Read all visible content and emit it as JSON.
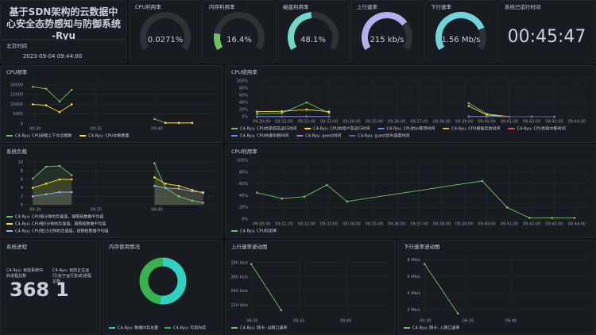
{
  "header": {
    "title": "基于SDN架构的云数据中心安全态势感知与防御系统-Ryu",
    "time_label": "北京时间",
    "time": "2023-09-04 09:44:00",
    "uptime_label": "系统已运行时间",
    "uptime": "00:45:47"
  },
  "gauges": [
    {
      "title": "CPU利用率",
      "value": 0.0271,
      "value_label": "0.0271%",
      "min": 0,
      "max": 100,
      "color": "#73bf69"
    },
    {
      "title": "内存利用率",
      "value": 16.4,
      "value_label": "16.4%",
      "min": 0,
      "max": 100,
      "color": "#73bf69"
    },
    {
      "title": "磁盘利用率",
      "value": 48.1,
      "value_label": "48.1%",
      "min": 0,
      "max": 100,
      "color": "#6fd8cf"
    },
    {
      "title": "上行速率",
      "value": 215,
      "value_label": "215 kb/s",
      "min": 0,
      "max": 300,
      "color": "#b3b0f0"
    },
    {
      "title": "下行速率",
      "value": 1.56,
      "value_label": "1.56 Mb/s",
      "min": 0,
      "max": 2,
      "color": "#6fd3dc"
    }
  ],
  "charts": [
    {
      "type": "line",
      "title": "CPU频率",
      "x": [
        29.8,
        30.9,
        32.0,
        33.0,
        36.0,
        39.8,
        40.7,
        41.8,
        42.9
      ],
      "xlim": [
        29.2,
        44.8
      ],
      "xticks": [
        {
          "value": 30,
          "label": "09:30"
        },
        {
          "value": 35,
          "label": "09:35"
        },
        {
          "value": 40,
          "label": "09:40"
        }
      ],
      "ylim": [
        0,
        22000
      ],
      "yticks": [
        0,
        5000,
        10000,
        15000,
        20000
      ],
      "series": [
        {
          "name": "C4-Ryu: CPU进程上下文切换数",
          "color": "#73bf69",
          "values": [
            19000,
            18000,
            11500,
            17500,
            null,
            2500,
            500,
            500,
            500
          ]
        },
        {
          "name": "C4-Ryu: CPU中断数量",
          "color": "#fade2a",
          "values": [
            10000,
            9500,
            6000,
            10000,
            null,
            null,
            500,
            500,
            500
          ]
        }
      ]
    },
    {
      "type": "line",
      "title": "CPU使用率",
      "x": [
        29.8,
        30.9,
        32.0,
        33.0,
        36.0,
        39.2,
        40.0,
        41.0,
        42.0,
        43.0
      ],
      "xlim": [
        29.5,
        44.5
      ],
      "xticks": [
        {
          "value": 30,
          "label": "09:30:00"
        },
        {
          "value": 31,
          "label": "09:31:00"
        },
        {
          "value": 32,
          "label": "09:32:00"
        },
        {
          "value": 33,
          "label": "09:33:00"
        },
        {
          "value": 34,
          "label": "09:34:00"
        },
        {
          "value": 35,
          "label": "09:35:00"
        },
        {
          "value": 36,
          "label": "09:36:00"
        },
        {
          "value": 37,
          "label": "09:37:00"
        },
        {
          "value": 38,
          "label": "09:38:00"
        },
        {
          "value": 39,
          "label": "09:39:00"
        },
        {
          "value": 40,
          "label": "09:40:00"
        },
        {
          "value": 41,
          "label": "09:41:00"
        },
        {
          "value": 42,
          "label": "09:42:00"
        },
        {
          "value": 43,
          "label": "09:43:00"
        },
        {
          "value": 44,
          "label": "09:44:00"
        }
      ],
      "ylim": [
        0,
        100
      ],
      "yticks": [
        {
          "value": 0,
          "label": "0%"
        },
        {
          "value": 20,
          "label": "20%"
        },
        {
          "value": 40,
          "label": "40%"
        },
        {
          "value": 60,
          "label": "60%"
        },
        {
          "value": 80,
          "label": "80%"
        },
        {
          "value": 100,
          "label": "100%"
        }
      ],
      "series": [
        {
          "name": "C4-Ryu: CPU的系统态运行时间",
          "color": "#73bf69",
          "values": [
            8,
            10,
            40,
            10,
            null,
            38,
            8,
            0,
            0,
            0
          ]
        },
        {
          "name": "C4-Ryu: CPU的用户态运行时间",
          "color": "#fade2a",
          "values": [
            14,
            15,
            20,
            14,
            null,
            30,
            5,
            0,
            0,
            0
          ]
        },
        {
          "name": "C4-Ryu: CPU的io等待时间",
          "color": "#5794f2",
          "values": [
            1,
            1,
            1,
            1,
            null,
            1,
            1,
            0,
            0,
            0
          ]
        },
        {
          "name": "C4-Ryu: CPU被偷走的时间",
          "color": "#ff9830",
          "values": [
            0,
            0,
            0,
            0,
            null,
            0,
            0,
            0,
            0,
            0
          ]
        },
        {
          "name": "C4-Ryu: CPU的软中断时间",
          "color": "#f2495c",
          "values": [
            0,
            0,
            0,
            0,
            null,
            0,
            0,
            0,
            0,
            0
          ]
        },
        {
          "name": "C4-Ryu: CPU的硬中断时间",
          "color": "#5794f2",
          "values": [
            0,
            0,
            0,
            0,
            null,
            0,
            0,
            0,
            0,
            0
          ]
        },
        {
          "name": "C4-Ryu: guest时间",
          "color": "#b877d9",
          "values": [
            0,
            0,
            0,
            0,
            null,
            0,
            0,
            0,
            0,
            0
          ]
        },
        {
          "name": "C4-Ryu: guest优先调度时间",
          "color": "#705da0",
          "values": [
            0,
            0,
            0,
            0,
            null,
            0,
            0,
            0,
            0,
            0
          ]
        }
      ]
    },
    {
      "type": "line",
      "title": "系统负载",
      "area": true,
      "x": [
        29.8,
        30.9,
        32.0,
        33.0,
        36.0,
        39.8,
        40.7,
        41.8,
        42.9,
        43.8
      ],
      "xlim": [
        29.2,
        44.8
      ],
      "xticks": [
        {
          "value": 30,
          "label": "09:30"
        },
        {
          "value": 35,
          "label": "09:35"
        },
        {
          "value": 40,
          "label": "09:40"
        }
      ],
      "ylim": [
        0,
        10.5
      ],
      "yticks": [
        0,
        2,
        4,
        6,
        8,
        10
      ],
      "series": [
        {
          "name": "C4-Ryu: CPU每分钟的负载值，按照核数做平均值",
          "color": "#73bf69",
          "values": [
            6.2,
            9,
            9.2,
            7,
            null,
            9.8,
            4,
            2,
            1,
            0.5
          ]
        },
        {
          "name": "C4-Ryu: CPU每5分钟的负载值，按照核数做平均值",
          "color": "#fade2a",
          "values": [
            4,
            5,
            6,
            6,
            null,
            6.5,
            5,
            4.5,
            3.5,
            2.8
          ]
        },
        {
          "name": "C4-Ryu: CPU每15分钟的负载值，按照核数做平均值",
          "color": "#8ab8ff",
          "values": [
            2,
            2.5,
            3,
            3,
            null,
            4.5,
            4,
            3.8,
            3.2,
            3
          ]
        }
      ]
    },
    {
      "type": "line",
      "title": "CPU利用率",
      "x": [
        29.8,
        30.9,
        31.9,
        32.9,
        33.8,
        39.8,
        40.9,
        41.9,
        42.9,
        43.9
      ],
      "xlim": [
        29.5,
        44.5
      ],
      "xticks": [
        {
          "value": 30,
          "label": "09:30:00"
        },
        {
          "value": 31,
          "label": "09:31:00"
        },
        {
          "value": 32,
          "label": "09:32:00"
        },
        {
          "value": 33,
          "label": "09:33:00"
        },
        {
          "value": 34,
          "label": "09:34:00"
        },
        {
          "value": 35,
          "label": "09:35:00"
        },
        {
          "value": 36,
          "label": "09:36:00"
        },
        {
          "value": 37,
          "label": "09:37:00"
        },
        {
          "value": 38,
          "label": "09:38:00"
        },
        {
          "value": 39,
          "label": "09:39:00"
        },
        {
          "value": 40,
          "label": "09:40:00"
        },
        {
          "value": 41,
          "label": "09:41:00"
        },
        {
          "value": 42,
          "label": "09:42:00"
        },
        {
          "value": 43,
          "label": "09:43:00"
        },
        {
          "value": 44,
          "label": "09:44:00"
        }
      ],
      "ylim": [
        0,
        100
      ],
      "yticks": [
        {
          "value": 0,
          "label": "0%"
        },
        {
          "value": 20,
          "label": "20%"
        },
        {
          "value": 40,
          "label": "40%"
        },
        {
          "value": 60,
          "label": "60%"
        },
        {
          "value": 80,
          "label": "80%"
        },
        {
          "value": 100,
          "label": "100%"
        }
      ],
      "series": [
        {
          "name": "C4-Ryu: CPU利用率",
          "color": "#73bf69",
          "values": [
            45,
            35,
            38,
            58,
            30,
            65,
            20,
            2,
            2,
            2
          ]
        }
      ]
    },
    {
      "type": "line",
      "title": "上行速率波动图",
      "x": [
        29.9,
        33.1
      ],
      "xlim": [
        29.8,
        44.5
      ],
      "xticks": [
        {
          "value": 30,
          "label": "09:30"
        },
        {
          "value": 35,
          "label": "09:35"
        },
        {
          "value": 40,
          "label": "09:40"
        }
      ],
      "ylim": [
        205,
        290
      ],
      "yticks": [
        {
          "value": 220,
          "label": "220 kb/s"
        },
        {
          "value": 240,
          "label": "240 kb/s"
        },
        {
          "value": 260,
          "label": "260 kb/s"
        },
        {
          "value": 280,
          "label": "280 kb/s"
        }
      ],
      "series": [
        {
          "name": "C4-Ryu: 网卡: 出网口速率",
          "color": "#73bf69",
          "values": [
            278,
            213
          ]
        }
      ]
    },
    {
      "type": "line",
      "title": "下行速率波动图",
      "x": [
        29.9,
        33.8
      ],
      "xlim": [
        29.7,
        49
      ],
      "xticks": [
        {
          "value": 30,
          "label": "09:30"
        },
        {
          "value": 35,
          "label": "09:35"
        },
        {
          "value": 40,
          "label": "09:40"
        }
      ],
      "ylim": [
        1.3,
        8.5
      ],
      "yticks": [
        {
          "value": 2,
          "label": "2 Mb/s"
        },
        {
          "value": 4,
          "label": "4 Mb/s"
        },
        {
          "value": 6,
          "label": "6 Mb/s"
        },
        {
          "value": 8,
          "label": "8 Mb/s"
        }
      ],
      "series": [
        {
          "name": "C4-Ryu: 网卡: 入网口速率",
          "color": "#73bf69",
          "values": [
            7.5,
            1.6
          ]
        }
      ]
    }
  ],
  "processes": {
    "title": "系统进程",
    "stats": [
      {
        "label": "C4-Ryu: 目前系统中的进程总数",
        "value": 368
      },
      {
        "label": "C4-Ryu: 目前正在运行(处于运行态)的进程总数",
        "value": 1
      }
    ]
  },
  "memory": {
    "type": "pie",
    "title": "内存使用情况",
    "categories": [
      "C4-Ryu: 物理内存总量",
      "C4-Ryu: 可用内存"
    ],
    "values": [
      52,
      48
    ],
    "colors": [
      "#2fd1c1",
      "#37b24d"
    ]
  }
}
